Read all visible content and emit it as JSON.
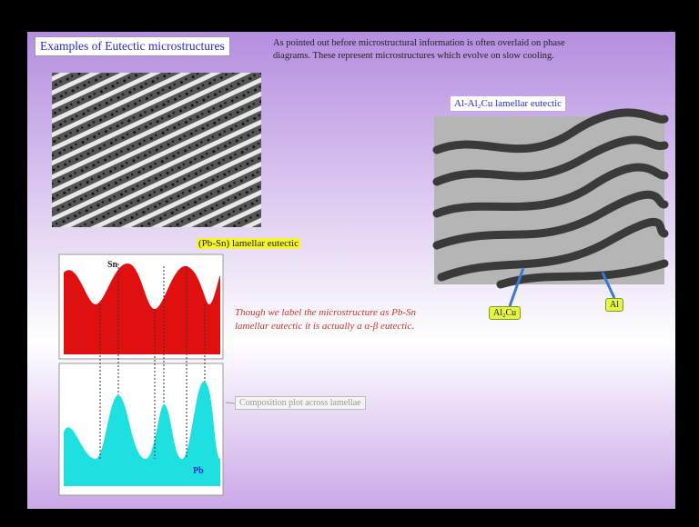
{
  "slide": {
    "title": "Examples of Eutectic microstructures",
    "intro": "As pointed out before microstructural information is often overlaid on phase diagrams. These represent microstructures which evolve on slow cooling.",
    "pbsn_caption": "(Pb-Sn) lamellar eutectic",
    "alcu_caption": "Al-Al₂Cu lamellar eutectic",
    "sn_label": "Sn",
    "pb_label": "Pb",
    "note": "Though we label the microstructure as Pb-Sn lamellar eutectic it is actually a α-β eutectic.",
    "composition_label": "Composition plot across lamellae",
    "al2cu_label": "Al₂Cu",
    "al_label": "Al"
  }
}
